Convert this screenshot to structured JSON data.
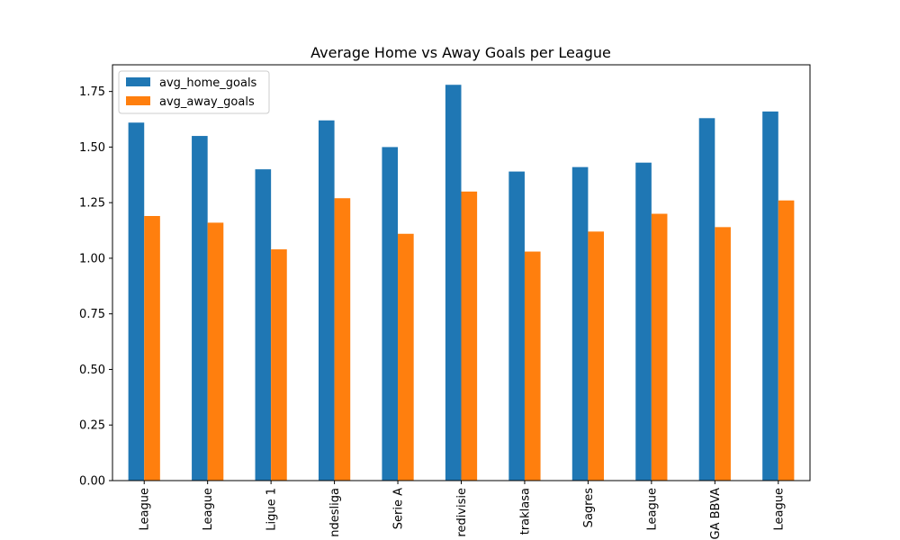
{
  "chart_data": {
    "type": "bar",
    "title": "Average Home vs Away Goals per League",
    "xlabel": "",
    "ylabel": "",
    "ylim": [
      0,
      1.87
    ],
    "yticks": [
      "0.00",
      "0.25",
      "0.50",
      "0.75",
      "1.00",
      "1.25",
      "1.50",
      "1.75"
    ],
    "grid": false,
    "legend_position": "top-left",
    "categories": [
      "League",
      "League",
      "Ligue 1",
      "ndesliga",
      "Serie A",
      "redivisie",
      "traklasa",
      "Sagres",
      "League",
      "GA BBVA",
      "League"
    ],
    "series": [
      {
        "name": "avg_home_goals",
        "color": "#1f77b4",
        "values": [
          1.61,
          1.55,
          1.4,
          1.62,
          1.5,
          1.78,
          1.39,
          1.41,
          1.43,
          1.63,
          1.66
        ]
      },
      {
        "name": "avg_away_goals",
        "color": "#ff7f0e",
        "values": [
          1.19,
          1.16,
          1.04,
          1.27,
          1.11,
          1.3,
          1.03,
          1.12,
          1.2,
          1.14,
          1.26
        ]
      }
    ]
  }
}
